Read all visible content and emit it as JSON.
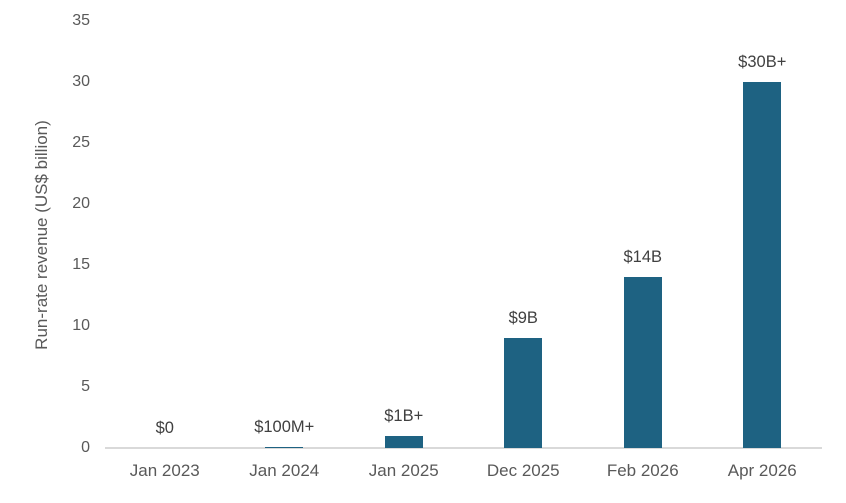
{
  "chart_data": {
    "type": "bar",
    "title": "",
    "categories": [
      "Jan 2023",
      "Jan 2024",
      "Jan 2025",
      "Dec 2025",
      "Feb 2026",
      "Apr 2026"
    ],
    "values": [
      0,
      0.1,
      1,
      9,
      14,
      30
    ],
    "data_labels": [
      "$0",
      "$100M+",
      "$1B+",
      "$9B",
      "$14B",
      "$30B+"
    ],
    "xlabel": "",
    "ylabel": "Run-rate revenue (US$ billion)",
    "ylim": [
      0,
      35
    ],
    "yticks": [
      0,
      5,
      10,
      15,
      20,
      25,
      30,
      35
    ],
    "grid": false,
    "legend": "none",
    "colors": {
      "bar": "#1E6282",
      "axis_line": "#D9D9D9",
      "axis_text": "#595959",
      "data_label_text": "#404040",
      "background": "#FFFFFF"
    }
  }
}
